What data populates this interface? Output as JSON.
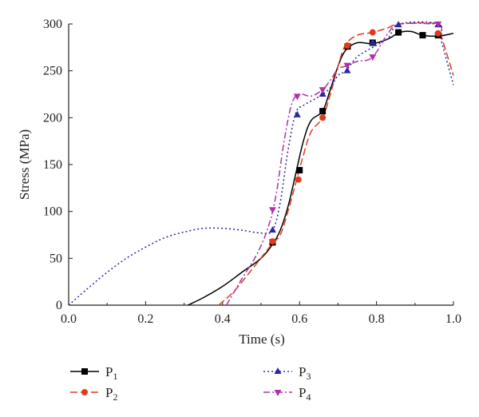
{
  "chart_data": {
    "type": "line",
    "title": "",
    "xlabel": "Time (s)",
    "ylabel": "Stress (MPa)",
    "xlim": [
      0.0,
      1.0
    ],
    "ylim": [
      0,
      300
    ],
    "x_ticks": [
      "0.0",
      "0.2",
      "0.4",
      "0.6",
      "0.8",
      "1.0"
    ],
    "y_ticks": [
      "0",
      "50",
      "100",
      "150",
      "200",
      "250",
      "300"
    ],
    "grid": false,
    "legend_placement": "bottom",
    "series": [
      {
        "name": "P1",
        "label_main": "P",
        "label_sub": "1",
        "color": "#000000",
        "dash": "solid",
        "marker": "square",
        "points": [
          [
            0.31,
            0
          ],
          [
            0.35,
            8
          ],
          [
            0.4,
            20
          ],
          [
            0.45,
            35
          ],
          [
            0.5,
            50
          ],
          [
            0.53,
            65
          ],
          [
            0.55,
            80
          ],
          [
            0.57,
            105
          ],
          [
            0.59,
            140
          ],
          [
            0.61,
            175
          ],
          [
            0.63,
            197
          ],
          [
            0.66,
            207
          ],
          [
            0.68,
            230
          ],
          [
            0.7,
            255
          ],
          [
            0.72,
            272
          ],
          [
            0.75,
            280
          ],
          [
            0.79,
            279
          ],
          [
            0.83,
            284
          ],
          [
            0.86,
            291
          ],
          [
            0.89,
            292
          ],
          [
            0.92,
            288
          ],
          [
            0.96,
            287
          ],
          [
            1.0,
            290
          ]
        ],
        "markers": [
          [
            0.53,
            67
          ],
          [
            0.6,
            144
          ],
          [
            0.66,
            207
          ],
          [
            0.725,
            276
          ],
          [
            0.79,
            280
          ],
          [
            0.857,
            291
          ],
          [
            0.92,
            288
          ],
          [
            0.96,
            288
          ]
        ]
      },
      {
        "name": "P2",
        "label_main": "P",
        "label_sub": "2",
        "color": "#e03a1e",
        "dash": "long-dash",
        "marker": "circle",
        "points": [
          [
            0.39,
            0
          ],
          [
            0.43,
            15
          ],
          [
            0.48,
            40
          ],
          [
            0.53,
            66
          ],
          [
            0.55,
            75
          ],
          [
            0.57,
            100
          ],
          [
            0.59,
            130
          ],
          [
            0.61,
            160
          ],
          [
            0.63,
            185
          ],
          [
            0.66,
            200
          ],
          [
            0.68,
            225
          ],
          [
            0.7,
            255
          ],
          [
            0.72,
            278
          ],
          [
            0.75,
            288
          ],
          [
            0.79,
            291
          ],
          [
            0.83,
            296
          ],
          [
            0.86,
            300
          ],
          [
            0.96,
            300
          ],
          [
            0.97,
            285
          ],
          [
            1.0,
            245
          ]
        ],
        "markers": [
          [
            0.53,
            68
          ],
          [
            0.597,
            134
          ],
          [
            0.66,
            200
          ],
          [
            0.724,
            277
          ],
          [
            0.79,
            291
          ],
          [
            0.96,
            290
          ]
        ]
      },
      {
        "name": "P3",
        "label_main": "P",
        "label_sub": "3",
        "color": "#2828a0",
        "dash": "dotted",
        "marker": "triangle-up",
        "points": [
          [
            0.0,
            0
          ],
          [
            0.05,
            18
          ],
          [
            0.1,
            35
          ],
          [
            0.15,
            50
          ],
          [
            0.2,
            62
          ],
          [
            0.25,
            72
          ],
          [
            0.3,
            78
          ],
          [
            0.35,
            82
          ],
          [
            0.4,
            82
          ],
          [
            0.45,
            80
          ],
          [
            0.5,
            77
          ],
          [
            0.53,
            80
          ],
          [
            0.55,
            110
          ],
          [
            0.57,
            165
          ],
          [
            0.59,
            205
          ],
          [
            0.61,
            213
          ],
          [
            0.64,
            220
          ],
          [
            0.66,
            225
          ],
          [
            0.68,
            232
          ],
          [
            0.7,
            245
          ],
          [
            0.72,
            250
          ],
          [
            0.75,
            265
          ],
          [
            0.79,
            275
          ],
          [
            0.83,
            285
          ],
          [
            0.86,
            300
          ],
          [
            0.96,
            300
          ],
          [
            0.97,
            280
          ],
          [
            1.0,
            235
          ]
        ],
        "markers": [
          [
            0.53,
            80
          ],
          [
            0.594,
            203
          ],
          [
            0.66,
            225
          ],
          [
            0.724,
            250
          ],
          [
            0.79,
            280
          ],
          [
            0.857,
            299
          ],
          [
            0.96,
            299
          ]
        ]
      },
      {
        "name": "P4",
        "label_main": "P",
        "label_sub": "4",
        "color": "#b030a8",
        "dash": "dash-dot",
        "marker": "triangle-down",
        "points": [
          [
            0.41,
            0
          ],
          [
            0.45,
            28
          ],
          [
            0.49,
            55
          ],
          [
            0.52,
            85
          ],
          [
            0.54,
            120
          ],
          [
            0.56,
            175
          ],
          [
            0.58,
            215
          ],
          [
            0.6,
            225
          ],
          [
            0.63,
            223
          ],
          [
            0.66,
            230
          ],
          [
            0.68,
            240
          ],
          [
            0.7,
            252
          ],
          [
            0.72,
            255
          ],
          [
            0.75,
            260
          ],
          [
            0.78,
            262
          ],
          [
            0.8,
            270
          ],
          [
            0.83,
            290
          ],
          [
            0.86,
            300
          ],
          [
            0.96,
            300
          ]
        ],
        "markers": [
          [
            0.53,
            102
          ],
          [
            0.594,
            223
          ],
          [
            0.66,
            230
          ],
          [
            0.724,
            256
          ],
          [
            0.79,
            265
          ],
          [
            0.96,
            300
          ]
        ]
      }
    ]
  }
}
